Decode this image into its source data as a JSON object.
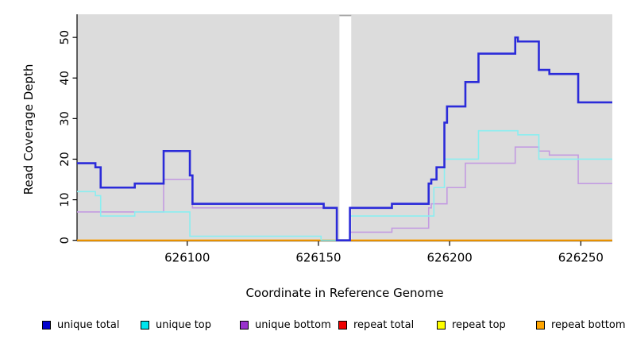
{
  "chart_data": {
    "type": "line",
    "subtype": "step",
    "title": "",
    "xlabel": "Coordinate in Reference Genome",
    "ylabel": "Read Coverage Depth",
    "xlim": [
      626058,
      626262
    ],
    "ylim": [
      0,
      55.7
    ],
    "x_ticks": [
      626100,
      626150,
      626200,
      626250
    ],
    "y_ticks": [
      0,
      10,
      20,
      30,
      40,
      50
    ],
    "grid": false,
    "legend_position": "bottom",
    "plot_bg_color": "#dcdcdc",
    "axis_color": "#000000",
    "gap_region": {
      "x_start": 626158,
      "x_end": 626162.5,
      "fill": "#ffffff",
      "cap_color": "#a8a8a8"
    },
    "series": [
      {
        "name": "unique total",
        "legend_color": "#0000cd",
        "line_color": "#2b2bd9",
        "line_width": 2.6,
        "points": [
          [
            626058,
            19
          ],
          [
            626065,
            18
          ],
          [
            626067,
            13
          ],
          [
            626080,
            14
          ],
          [
            626091,
            22
          ],
          [
            626101,
            16
          ],
          [
            626102,
            9
          ],
          [
            626152,
            8
          ],
          [
            626157,
            0
          ],
          [
            626162,
            8
          ],
          [
            626178,
            9
          ],
          [
            626192,
            14
          ],
          [
            626193,
            15
          ],
          [
            626195,
            18
          ],
          [
            626198,
            29
          ],
          [
            626199,
            33
          ],
          [
            626206,
            39
          ],
          [
            626211,
            46
          ],
          [
            626225,
            50
          ],
          [
            626226,
            49
          ],
          [
            626234,
            42
          ],
          [
            626238,
            41
          ],
          [
            626249,
            34
          ]
        ]
      },
      {
        "name": "unique top",
        "legend_color": "#00e5ee",
        "line_color": "#8aeef0",
        "line_width": 1.6,
        "points": [
          [
            626058,
            12
          ],
          [
            626065,
            11
          ],
          [
            626067,
            6
          ],
          [
            626080,
            7
          ],
          [
            626101,
            1
          ],
          [
            626151,
            0
          ],
          [
            626162,
            6
          ],
          [
            626194,
            13
          ],
          [
            626198,
            20
          ],
          [
            626211,
            27
          ],
          [
            626226,
            26
          ],
          [
            626234,
            20
          ]
        ]
      },
      {
        "name": "unique bottom",
        "legend_color": "#9932cc",
        "line_color": "#c39be1",
        "line_width": 1.6,
        "points": [
          [
            626058,
            7
          ],
          [
            626091,
            15
          ],
          [
            626102,
            8
          ],
          [
            626157,
            0
          ],
          [
            626162,
            2
          ],
          [
            626178,
            3
          ],
          [
            626192,
            8
          ],
          [
            626193,
            9
          ],
          [
            626199,
            13
          ],
          [
            626206,
            19
          ],
          [
            626225,
            23
          ],
          [
            626234,
            22
          ],
          [
            626238,
            21
          ],
          [
            626249,
            14
          ]
        ]
      },
      {
        "name": "repeat total",
        "legend_color": "#ee0000",
        "line_color": "#e00000",
        "line_width": 1.6,
        "points": [
          [
            626058,
            0
          ]
        ]
      },
      {
        "name": "repeat top",
        "legend_color": "#ffff00",
        "line_color": "#ffff00",
        "line_width": 1.6,
        "points": [
          [
            626058,
            0
          ]
        ]
      },
      {
        "name": "repeat bottom",
        "legend_color": "#ffa500",
        "line_color": "#ffa000",
        "line_width": 2.0,
        "points": [
          [
            626058,
            0
          ]
        ]
      }
    ]
  }
}
